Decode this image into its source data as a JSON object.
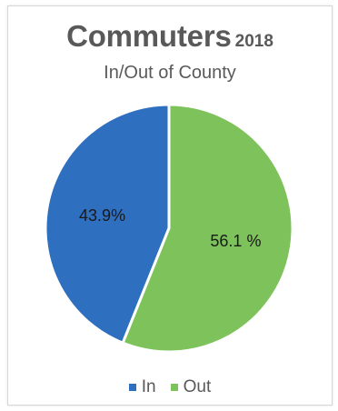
{
  "chart_data": {
    "type": "pie",
    "title": "Commuters",
    "title_year": "2018",
    "subtitle": "In/Out of County",
    "slices": [
      {
        "name": "In",
        "value": 43.9,
        "label": "43.9%",
        "color": "#2e6fbf"
      },
      {
        "name": "Out",
        "value": 56.1,
        "label": "56.1 %",
        "color": "#7dc25a"
      }
    ],
    "legend": {
      "placement": "bottom",
      "items": [
        {
          "label": "In",
          "color": "#2e6fbf"
        },
        {
          "label": "Out",
          "color": "#7dc25a"
        }
      ]
    }
  }
}
